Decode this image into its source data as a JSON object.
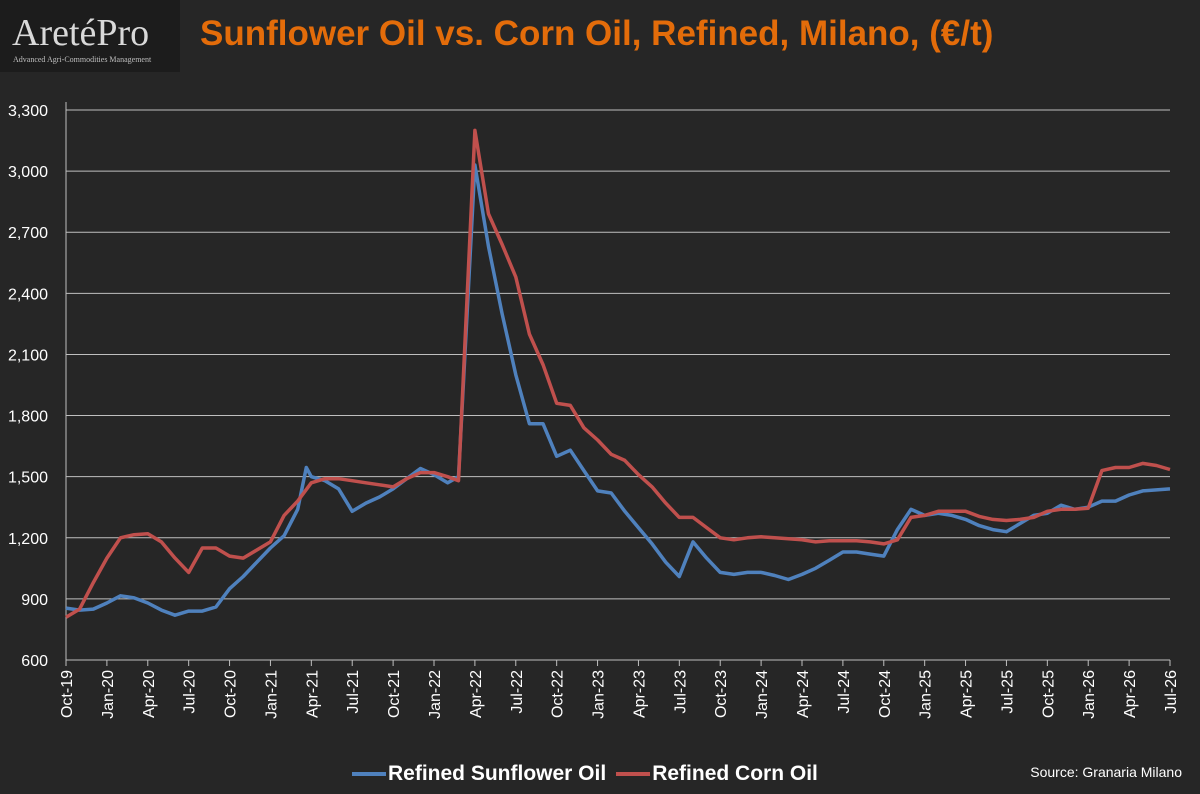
{
  "logo": {
    "brand": "AretéPro",
    "tagline": "Advanced Agri-Commodities Management"
  },
  "source": "Source: Granaria Milano",
  "chart_data": {
    "type": "line",
    "title": "Sunflower Oil vs. Corn Oil, Refined, Milano, (€/t)",
    "xlabel": "",
    "ylabel": "",
    "ylim": [
      600,
      3300
    ],
    "yticks": [
      600,
      900,
      1200,
      1500,
      1800,
      2100,
      2400,
      2700,
      3000,
      3300
    ],
    "ytick_labels": [
      "600",
      "900",
      "1,200",
      "1,500",
      "1,800",
      "2,100",
      "2,400",
      "2,700",
      "3,000",
      "3,300"
    ],
    "xlim": [
      "2019-10",
      "2026-07"
    ],
    "xticks": [
      "Oct-19",
      "Jan-20",
      "Apr-20",
      "Jul-20",
      "Oct-20",
      "Jan-21",
      "Apr-21",
      "Jul-21",
      "Oct-21",
      "Jan-22",
      "Apr-22",
      "Jul-22",
      "Oct-22",
      "Jan-23",
      "Apr-23",
      "Jul-23",
      "Oct-23",
      "Jan-24",
      "Apr-24",
      "Jul-24",
      "Oct-24",
      "Jan-25",
      "Apr-25",
      "Jul-25",
      "Oct-25",
      "Jan-26",
      "Apr-26",
      "Jul-26"
    ],
    "grid": "horizontal",
    "legend_position": "bottom",
    "colors": {
      "sunflower": "#4f81bd",
      "corn": "#c0504d",
      "grid": "#bfbfbf",
      "axis_text": "#ffffff"
    },
    "series": [
      {
        "name": "Refined Sunflower Oil",
        "points": [
          [
            "2019-10",
            855
          ],
          [
            "2019-11",
            845
          ],
          [
            "2019-12",
            850
          ],
          [
            "2020-01",
            880
          ],
          [
            "2020-02",
            915
          ],
          [
            "2020-03",
            905
          ],
          [
            "2020-04",
            880
          ],
          [
            "2020-05",
            845
          ],
          [
            "2020-06",
            820
          ],
          [
            "2020-07",
            840
          ],
          [
            "2020-08",
            840
          ],
          [
            "2020-09",
            860
          ],
          [
            "2020-10",
            950
          ],
          [
            "2020-11",
            1010
          ],
          [
            "2020-12",
            1080
          ],
          [
            "2021-01",
            1150
          ],
          [
            "2021-02",
            1210
          ],
          [
            "2021-03",
            1340
          ],
          [
            "2021-03-20",
            1545
          ],
          [
            "2021-04",
            1500
          ],
          [
            "2021-05",
            1480
          ],
          [
            "2021-06",
            1440
          ],
          [
            "2021-07",
            1330
          ],
          [
            "2021-08",
            1370
          ],
          [
            "2021-09",
            1400
          ],
          [
            "2021-10",
            1440
          ],
          [
            "2021-11",
            1490
          ],
          [
            "2021-12",
            1540
          ],
          [
            "2022-01",
            1510
          ],
          [
            "2022-02",
            1470
          ],
          [
            "2022-02-25",
            1500
          ],
          [
            "2022-04",
            3030
          ],
          [
            "2022-05",
            2630
          ],
          [
            "2022-06",
            2300
          ],
          [
            "2022-07",
            2000
          ],
          [
            "2022-08",
            1760
          ],
          [
            "2022-09",
            1760
          ],
          [
            "2022-10",
            1600
          ],
          [
            "2022-11",
            1630
          ],
          [
            "2022-12",
            1530
          ],
          [
            "2023-01",
            1430
          ],
          [
            "2023-02",
            1420
          ],
          [
            "2023-03",
            1330
          ],
          [
            "2023-04",
            1250
          ],
          [
            "2023-05",
            1170
          ],
          [
            "2023-06",
            1080
          ],
          [
            "2023-07",
            1010
          ],
          [
            "2023-07-15",
            1090
          ],
          [
            "2023-08",
            1180
          ],
          [
            "2023-09",
            1100
          ],
          [
            "2023-10",
            1030
          ],
          [
            "2023-11",
            1020
          ],
          [
            "2023-12",
            1030
          ],
          [
            "2024-01",
            1030
          ],
          [
            "2024-02",
            1015
          ],
          [
            "2024-03",
            995
          ],
          [
            "2024-04",
            1020
          ],
          [
            "2024-05",
            1050
          ],
          [
            "2024-06",
            1090
          ],
          [
            "2024-07",
            1130
          ],
          [
            "2024-08",
            1130
          ],
          [
            "2024-09",
            1120
          ],
          [
            "2024-10",
            1110
          ],
          [
            "2024-11",
            1240
          ],
          [
            "2024-12",
            1340
          ],
          [
            "2025-01",
            1310
          ],
          [
            "2025-02",
            1320
          ],
          [
            "2025-03",
            1310
          ],
          [
            "2025-04",
            1290
          ],
          [
            "2025-05",
            1260
          ],
          [
            "2025-06",
            1240
          ],
          [
            "2025-07",
            1230
          ],
          [
            "2025-08",
            1270
          ],
          [
            "2025-09",
            1310
          ],
          [
            "2025-10",
            1320
          ],
          [
            "2025-11",
            1360
          ],
          [
            "2025-12",
            1340
          ],
          [
            "2026-01",
            1350
          ],
          [
            "2026-02",
            1380
          ],
          [
            "2026-03",
            1380
          ],
          [
            "2026-04",
            1410
          ],
          [
            "2026-05",
            1430
          ],
          [
            "2026-06",
            1435
          ],
          [
            "2026-07",
            1440
          ]
        ]
      },
      {
        "name": "Refined Corn Oil",
        "points": [
          [
            "2019-10",
            810
          ],
          [
            "2019-11",
            850
          ],
          [
            "2019-12",
            980
          ],
          [
            "2020-01",
            1100
          ],
          [
            "2020-02",
            1200
          ],
          [
            "2020-03",
            1215
          ],
          [
            "2020-04",
            1220
          ],
          [
            "2020-05",
            1180
          ],
          [
            "2020-06",
            1100
          ],
          [
            "2020-07",
            1030
          ],
          [
            "2020-08",
            1150
          ],
          [
            "2020-09",
            1150
          ],
          [
            "2020-10",
            1110
          ],
          [
            "2020-11",
            1100
          ],
          [
            "2020-12",
            1140
          ],
          [
            "2021-01",
            1180
          ],
          [
            "2021-02",
            1310
          ],
          [
            "2021-03",
            1380
          ],
          [
            "2021-04",
            1470
          ],
          [
            "2021-05",
            1490
          ],
          [
            "2021-06",
            1490
          ],
          [
            "2021-07",
            1480
          ],
          [
            "2021-08",
            1470
          ],
          [
            "2021-09",
            1460
          ],
          [
            "2021-10",
            1450
          ],
          [
            "2021-11",
            1490
          ],
          [
            "2021-12",
            1520
          ],
          [
            "2022-01",
            1520
          ],
          [
            "2022-02",
            1500
          ],
          [
            "2022-02-25",
            1480
          ],
          [
            "2022-04",
            3200
          ],
          [
            "2022-05",
            2790
          ],
          [
            "2022-06",
            2640
          ],
          [
            "2022-07",
            2480
          ],
          [
            "2022-08",
            2200
          ],
          [
            "2022-09",
            2050
          ],
          [
            "2022-10",
            1860
          ],
          [
            "2022-11",
            1850
          ],
          [
            "2022-12",
            1740
          ],
          [
            "2023-01",
            1680
          ],
          [
            "2023-02",
            1610
          ],
          [
            "2023-03",
            1580
          ],
          [
            "2023-04",
            1510
          ],
          [
            "2023-05",
            1450
          ],
          [
            "2023-06",
            1370
          ],
          [
            "2023-07",
            1300
          ],
          [
            "2023-08",
            1300
          ],
          [
            "2023-09",
            1250
          ],
          [
            "2023-10",
            1200
          ],
          [
            "2023-11",
            1190
          ],
          [
            "2023-12",
            1200
          ],
          [
            "2024-01",
            1205
          ],
          [
            "2024-02",
            1200
          ],
          [
            "2024-03",
            1195
          ],
          [
            "2024-04",
            1190
          ],
          [
            "2024-05",
            1180
          ],
          [
            "2024-06",
            1185
          ],
          [
            "2024-07",
            1185
          ],
          [
            "2024-08",
            1185
          ],
          [
            "2024-09",
            1180
          ],
          [
            "2024-10",
            1170
          ],
          [
            "2024-11",
            1190
          ],
          [
            "2024-12",
            1300
          ],
          [
            "2025-01",
            1310
          ],
          [
            "2025-02",
            1330
          ],
          [
            "2025-03",
            1330
          ],
          [
            "2025-04",
            1330
          ],
          [
            "2025-05",
            1305
          ],
          [
            "2025-06",
            1290
          ],
          [
            "2025-07",
            1285
          ],
          [
            "2025-08",
            1290
          ],
          [
            "2025-09",
            1300
          ],
          [
            "2025-10",
            1330
          ],
          [
            "2025-11",
            1340
          ],
          [
            "2025-12",
            1340
          ],
          [
            "2026-01",
            1345
          ],
          [
            "2026-02",
            1530
          ],
          [
            "2026-03",
            1545
          ],
          [
            "2026-04",
            1545
          ],
          [
            "2026-05",
            1565
          ],
          [
            "2026-06",
            1555
          ],
          [
            "2026-07",
            1535
          ]
        ]
      }
    ]
  }
}
